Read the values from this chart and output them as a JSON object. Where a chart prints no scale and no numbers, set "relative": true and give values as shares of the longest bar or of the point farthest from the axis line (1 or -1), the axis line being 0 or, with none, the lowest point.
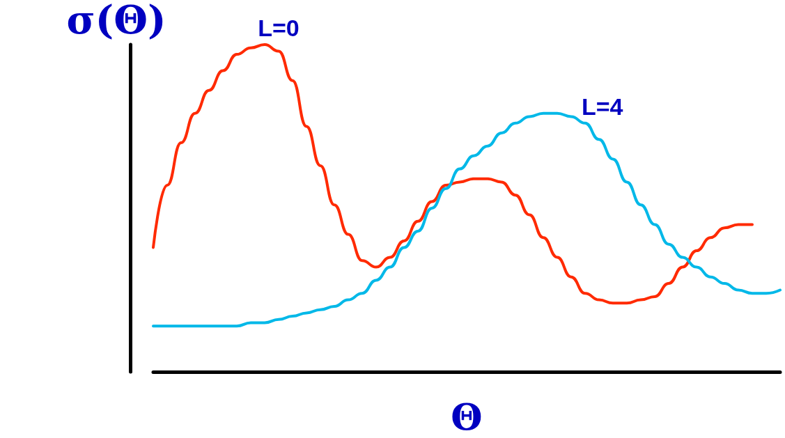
{
  "chart_data": {
    "type": "line",
    "relative": true,
    "xlabel": "Θ",
    "ylabel": "σ(Θ)",
    "grid": false,
    "legend": false,
    "marker": "none",
    "line_style": "solid",
    "categories": [
      null,
      null,
      null,
      null,
      null,
      null,
      null,
      null,
      null,
      null,
      null,
      null,
      null,
      null,
      null,
      null,
      null,
      null,
      null,
      null,
      null,
      null,
      null,
      null,
      null,
      null,
      null,
      null,
      null,
      null,
      null,
      null,
      null,
      null,
      null,
      null,
      null,
      null,
      null,
      null,
      null,
      null,
      null,
      null,
      null,
      null
    ],
    "series": [
      {
        "name": "L=0",
        "color": "#ff2a00",
        "values": [
          0.38,
          0.57,
          0.7,
          0.79,
          0.86,
          0.92,
          0.97,
          0.99,
          1,
          0.98,
          0.89,
          0.75,
          0.63,
          0.51,
          0.42,
          0.34,
          0.32,
          0.35,
          0.4,
          0.46,
          0.52,
          0.57,
          0.58,
          0.59,
          0.59,
          0.58,
          0.54,
          0.48,
          0.41,
          0.35,
          0.29,
          0.24,
          0.22,
          0.21,
          0.21,
          0.22,
          0.23,
          0.27,
          0.32,
          0.37,
          0.41,
          0.44,
          0.45,
          0.45,
          null,
          null
        ]
      },
      {
        "name": "L=4",
        "color": "#00b8e8",
        "values": [
          0.14,
          0.14,
          0.14,
          0.14,
          0.14,
          0.14,
          0.14,
          0.15,
          0.15,
          0.16,
          0.17,
          0.18,
          0.19,
          0.2,
          0.22,
          0.24,
          0.28,
          0.32,
          0.38,
          0.43,
          0.5,
          0.56,
          0.62,
          0.66,
          0.69,
          0.73,
          0.76,
          0.78,
          0.79,
          0.79,
          0.78,
          0.76,
          0.71,
          0.65,
          0.58,
          0.51,
          0.45,
          0.39,
          0.35,
          0.32,
          0.29,
          0.27,
          0.25,
          0.24,
          0.24,
          0.25
        ]
      }
    ]
  }
}
